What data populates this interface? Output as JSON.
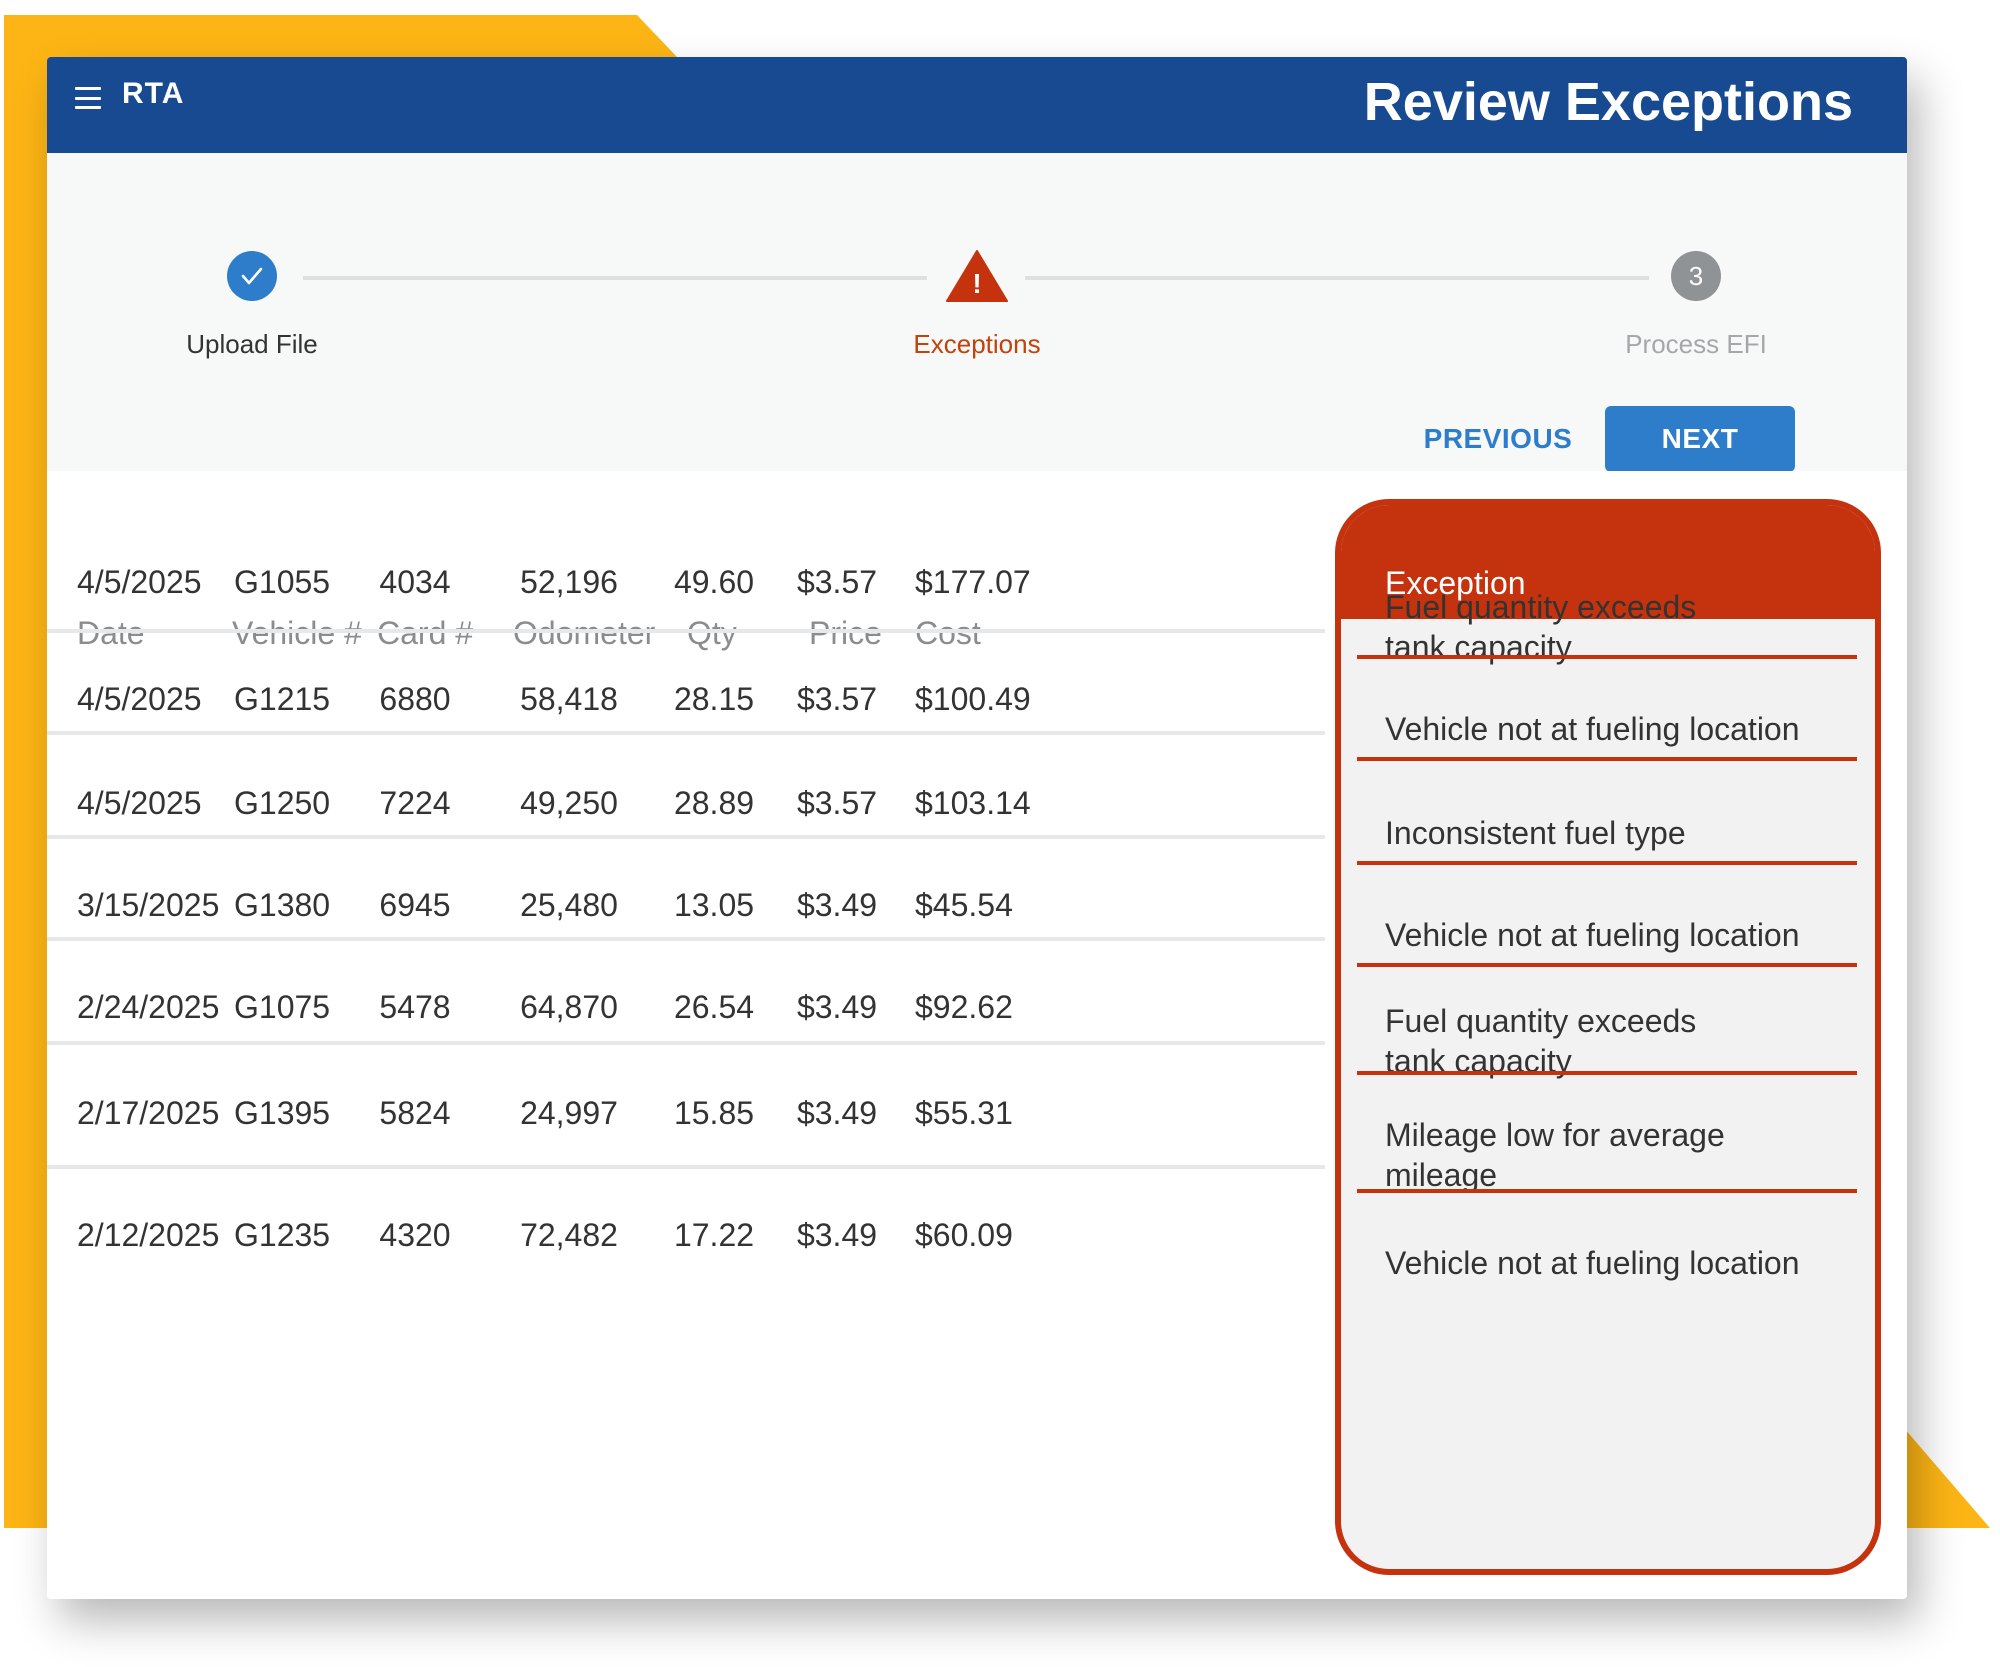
{
  "header": {
    "logo_text": "RTA",
    "title": "Review Exceptions"
  },
  "stepper": {
    "steps": [
      {
        "label": "Upload File",
        "state": "done",
        "icon": "check-icon"
      },
      {
        "label": "Exceptions",
        "state": "active",
        "icon": "warning-icon",
        "marker": "!"
      },
      {
        "label": "Process EFI",
        "state": "pending",
        "number": "3"
      }
    ],
    "previous_label": "PREVIOUS",
    "next_label": "NEXT"
  },
  "table": {
    "columns": [
      "Date",
      "Vehicle #",
      "Card #",
      "Odometer",
      "Qty",
      "Price",
      "Cost",
      "Exception"
    ],
    "rows": [
      {
        "date": "4/5/2025",
        "vehicle": "G1055",
        "card": "4034",
        "odometer": "52,196",
        "qty": "49.60",
        "price": "$3.57",
        "cost": "$177.07",
        "exception": [
          "Fuel quantity exceeds",
          "tank capacity"
        ]
      },
      {
        "date": "4/5/2025",
        "vehicle": "G1215",
        "card": "6880",
        "odometer": "58,418",
        "qty": "28.15",
        "price": "$3.57",
        "cost": "$100.49",
        "exception": [
          "Vehicle not at fueling location"
        ]
      },
      {
        "date": "4/5/2025",
        "vehicle": "G1250",
        "card": "7224",
        "odometer": "49,250",
        "qty": "28.89",
        "price": "$3.57",
        "cost": "$103.14",
        "exception": [
          "Inconsistent fuel type"
        ]
      },
      {
        "date": "3/15/2025",
        "vehicle": "G1380",
        "card": "6945",
        "odometer": "25,480",
        "qty": "13.05",
        "price": "$3.49",
        "cost": "$45.54",
        "exception": [
          "Vehicle not at fueling location"
        ]
      },
      {
        "date": "2/24/2025",
        "vehicle": "G1075",
        "card": "5478",
        "odometer": "64,870",
        "qty": "26.54",
        "price": "$3.49",
        "cost": "$92.62",
        "exception": [
          "Fuel quantity exceeds",
          "tank capacity"
        ]
      },
      {
        "date": "2/17/2025",
        "vehicle": "G1395",
        "card": "5824",
        "odometer": "24,997",
        "qty": "15.85",
        "price": "$3.49",
        "cost": "$55.31",
        "exception": [
          "Mileage low for average",
          "mileage"
        ]
      },
      {
        "date": "2/12/2025",
        "vehicle": "G1235",
        "card": "4320",
        "odometer": "72,482",
        "qty": "17.22",
        "price": "$3.49",
        "cost": "$60.09",
        "exception": [
          "Vehicle not at fueling location"
        ]
      }
    ]
  },
  "colors": {
    "brand_blue": "#184A92",
    "accent_blue": "#2D7DCB",
    "exception_red": "#C4320E",
    "frame_yellow": "#FDB515"
  }
}
